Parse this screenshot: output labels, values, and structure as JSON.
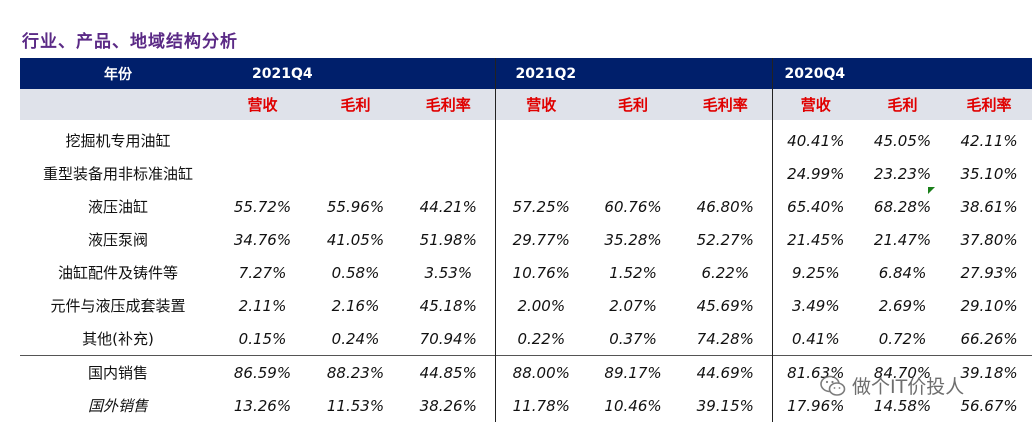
{
  "title": "行业、产品、地域结构分析",
  "header": {
    "year_label": "年份",
    "periods": [
      "2021Q4",
      "2021Q2",
      "2020Q4"
    ],
    "metrics": [
      "营收",
      "毛利",
      "毛利率"
    ]
  },
  "rows": [
    {
      "label": "挖掘机专用油缸",
      "values": [
        "",
        "",
        "",
        "",
        "",
        "",
        "40.41%",
        "45.05%",
        "42.11%"
      ]
    },
    {
      "label": "重型装备用非标准油缸",
      "values": [
        "",
        "",
        "",
        "",
        "",
        "",
        "24.99%",
        "23.23%",
        "35.10%"
      ]
    },
    {
      "label": "液压油缸",
      "values": [
        "55.72%",
        "55.96%",
        "44.21%",
        "57.25%",
        "60.76%",
        "46.80%",
        "65.40%",
        "68.28%",
        "38.61%"
      ]
    },
    {
      "label": "液压泵阀",
      "values": [
        "34.76%",
        "41.05%",
        "51.98%",
        "29.77%",
        "35.28%",
        "52.27%",
        "21.45%",
        "21.47%",
        "37.80%"
      ]
    },
    {
      "label": "油缸配件及铸件等",
      "values": [
        "7.27%",
        "0.58%",
        "3.53%",
        "10.76%",
        "1.52%",
        "6.22%",
        "9.25%",
        "6.84%",
        "27.93%"
      ]
    },
    {
      "label": "元件与液压成套装置",
      "values": [
        "2.11%",
        "2.16%",
        "45.18%",
        "2.00%",
        "2.07%",
        "45.69%",
        "3.49%",
        "2.69%",
        "29.10%"
      ]
    },
    {
      "label": "其他(补充)",
      "values": [
        "0.15%",
        "0.24%",
        "70.94%",
        "0.22%",
        "0.37%",
        "74.28%",
        "0.41%",
        "0.72%",
        "66.26%"
      ]
    },
    {
      "label": "国内销售",
      "values": [
        "86.59%",
        "88.23%",
        "44.85%",
        "88.00%",
        "89.17%",
        "44.69%",
        "81.63%",
        "84.70%",
        "39.18%"
      ]
    },
    {
      "label": "国外销售",
      "values": [
        "13.26%",
        "11.53%",
        "38.26%",
        "11.78%",
        "10.46%",
        "39.15%",
        "17.96%",
        "14.58%",
        "56.67%"
      ]
    }
  ],
  "watermark": {
    "text": "做个IT价投人",
    "icon": "wechat-icon"
  }
}
